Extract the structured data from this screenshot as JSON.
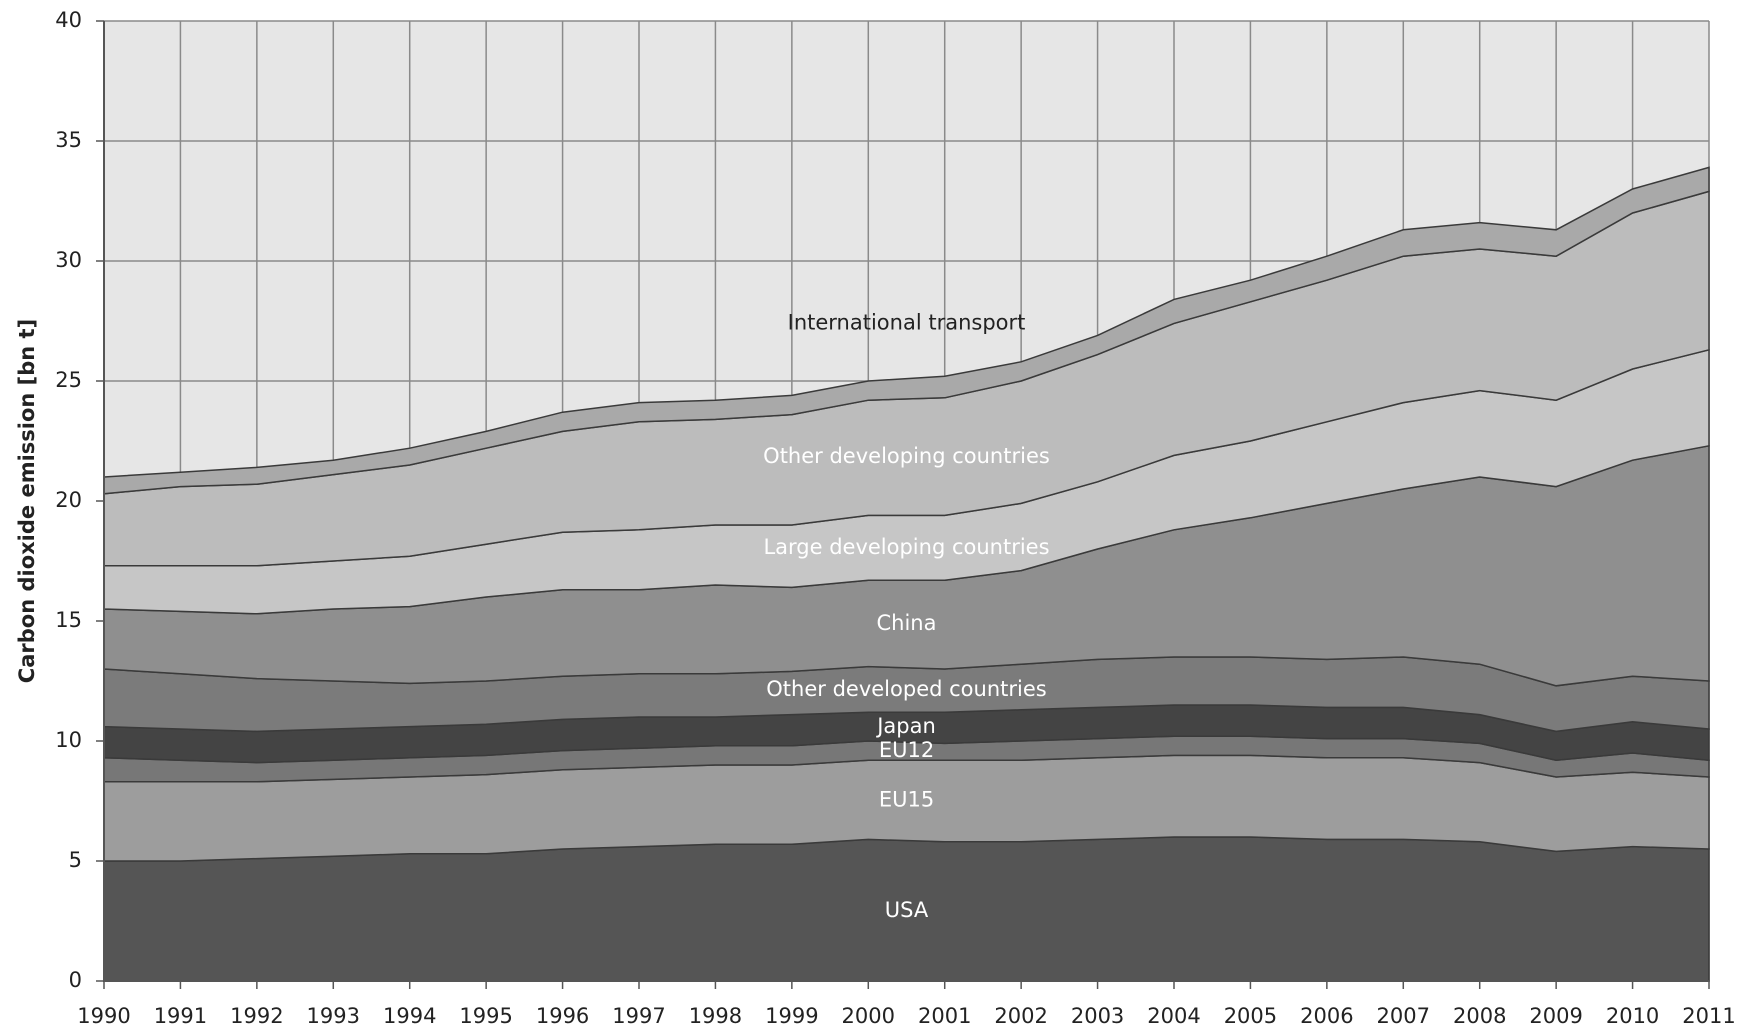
{
  "chart_data": {
    "type": "stacked_area",
    "ylabel": "Carbon dioxide emission [bn t]",
    "categories": [
      "1990",
      "1991",
      "1992",
      "1993",
      "1994",
      "1995",
      "1996",
      "1997",
      "1998",
      "1999",
      "2000",
      "2001",
      "2002",
      "2003",
      "2004",
      "2005",
      "2006",
      "2007",
      "2008",
      "2009",
      "2010",
      "2011"
    ],
    "ylim": [
      0,
      40
    ],
    "yticks": [
      0,
      5,
      10,
      15,
      20,
      25,
      30,
      35,
      40
    ],
    "grid": true,
    "series": [
      {
        "name": "USA",
        "color": "#555555",
        "values": [
          5.0,
          5.0,
          5.1,
          5.2,
          5.3,
          5.3,
          5.5,
          5.6,
          5.7,
          5.7,
          5.9,
          5.8,
          5.8,
          5.9,
          6.0,
          6.0,
          5.9,
          5.9,
          5.8,
          5.4,
          5.6,
          5.5
        ]
      },
      {
        "name": "EU15",
        "color": "#9d9d9d",
        "values": [
          3.3,
          3.3,
          3.2,
          3.2,
          3.2,
          3.3,
          3.3,
          3.3,
          3.3,
          3.3,
          3.3,
          3.4,
          3.4,
          3.4,
          3.4,
          3.4,
          3.4,
          3.4,
          3.3,
          3.1,
          3.1,
          3.0
        ]
      },
      {
        "name": "EU12",
        "color": "#777777",
        "values": [
          1.0,
          0.9,
          0.8,
          0.8,
          0.8,
          0.8,
          0.8,
          0.8,
          0.8,
          0.8,
          0.8,
          0.7,
          0.8,
          0.8,
          0.8,
          0.8,
          0.8,
          0.8,
          0.8,
          0.7,
          0.8,
          0.7
        ]
      },
      {
        "name": "Japan",
        "color": "#444444",
        "values": [
          1.3,
          1.3,
          1.3,
          1.3,
          1.3,
          1.3,
          1.3,
          1.3,
          1.2,
          1.3,
          1.2,
          1.3,
          1.3,
          1.3,
          1.3,
          1.3,
          1.3,
          1.3,
          1.2,
          1.2,
          1.3,
          1.3
        ]
      },
      {
        "name": "Other developed countries",
        "color": "#7b7b7b",
        "values": [
          2.4,
          2.3,
          2.2,
          2.0,
          1.8,
          1.8,
          1.8,
          1.8,
          1.8,
          1.8,
          1.9,
          1.8,
          1.9,
          2.0,
          2.0,
          2.0,
          2.0,
          2.1,
          2.1,
          1.9,
          1.9,
          2.0
        ]
      },
      {
        "name": "China",
        "color": "#8f8f8f",
        "values": [
          2.5,
          2.6,
          2.7,
          3.0,
          3.2,
          3.5,
          3.6,
          3.5,
          3.7,
          3.5,
          3.6,
          3.7,
          3.9,
          4.6,
          5.3,
          5.8,
          6.5,
          7.0,
          7.8,
          8.3,
          9.0,
          9.8
        ]
      },
      {
        "name": "Large developing countries",
        "color": "#c6c6c6",
        "values": [
          1.8,
          1.9,
          2.0,
          2.0,
          2.1,
          2.2,
          2.4,
          2.5,
          2.5,
          2.6,
          2.7,
          2.7,
          2.8,
          2.8,
          3.1,
          3.2,
          3.4,
          3.6,
          3.6,
          3.6,
          3.8,
          4.0
        ]
      },
      {
        "name": "Other developing countries",
        "color": "#bcbcbc",
        "values": [
          3.0,
          3.3,
          3.4,
          3.6,
          3.8,
          4.0,
          4.2,
          4.5,
          4.4,
          4.6,
          4.8,
          4.9,
          5.1,
          5.3,
          5.5,
          5.8,
          5.9,
          6.1,
          5.9,
          6.0,
          6.5,
          6.6
        ]
      },
      {
        "name": "International transport",
        "color": "#a9a9a9",
        "values": [
          0.7,
          0.6,
          0.7,
          0.6,
          0.7,
          0.7,
          0.8,
          0.8,
          0.8,
          0.8,
          0.8,
          0.9,
          0.8,
          0.8,
          1.0,
          0.9,
          1.0,
          1.1,
          1.1,
          1.1,
          1.0,
          1.0
        ]
      }
    ]
  }
}
